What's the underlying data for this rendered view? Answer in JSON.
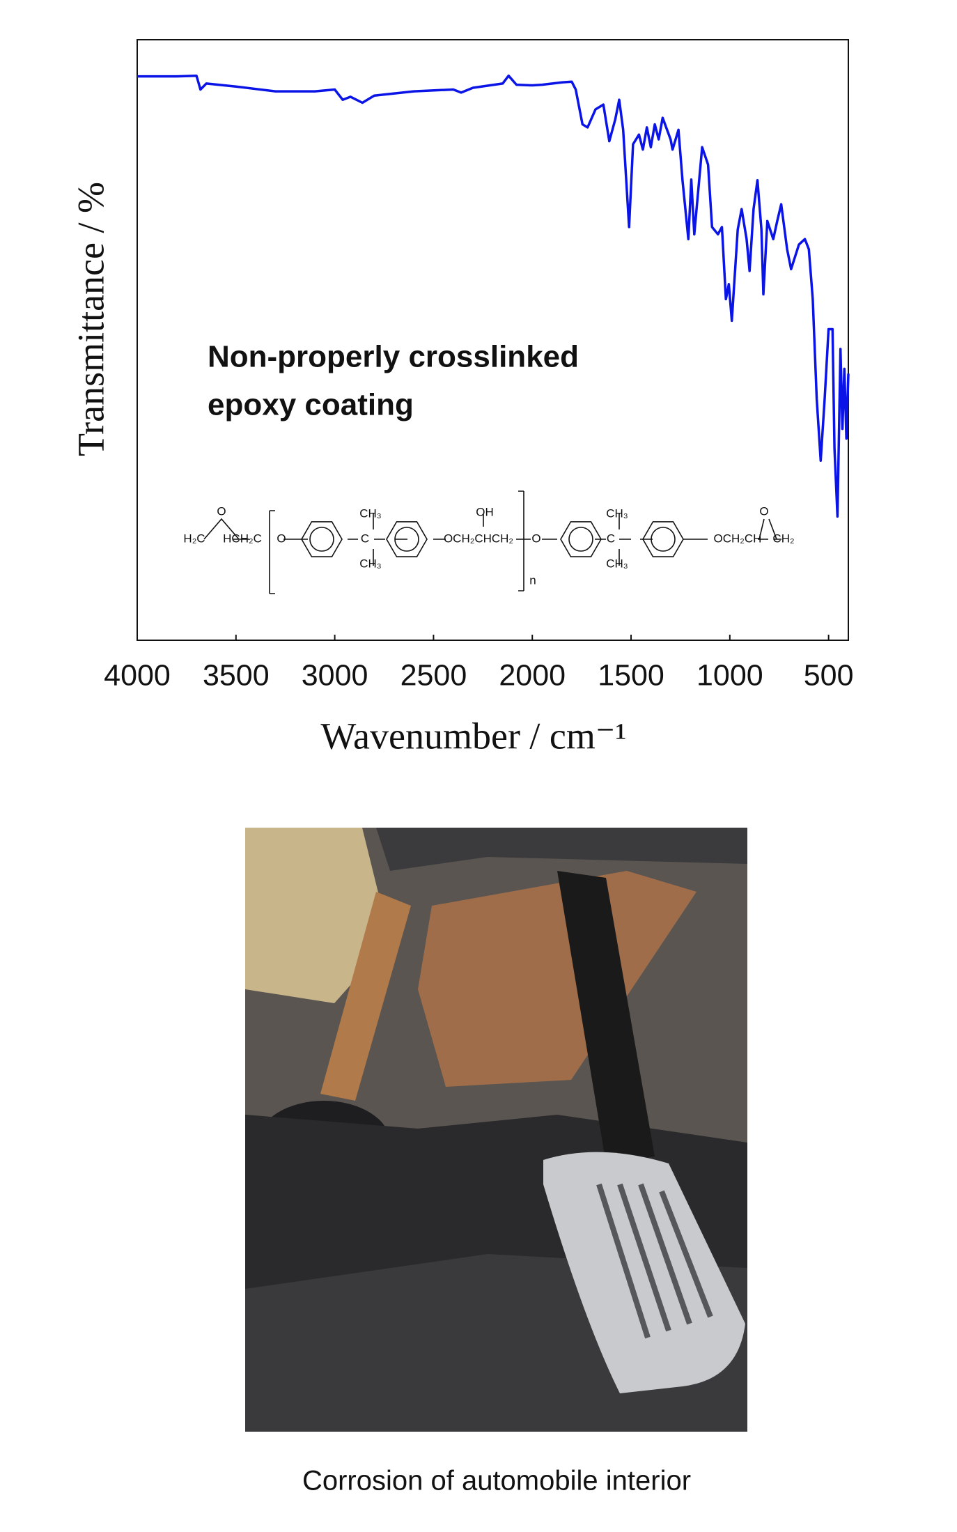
{
  "chart_data": {
    "type": "line",
    "ylabel": "Transmittance / %",
    "xlabel": "Wavenumber / cm⁻¹",
    "annotation": [
      "Non-properly crosslinked",
      "epoxy coating"
    ],
    "xlim": [
      4000,
      400
    ],
    "xticks": [
      4000,
      3500,
      3000,
      2500,
      2000,
      1500,
      1000,
      500
    ],
    "ylim": [
      0,
      100
    ],
    "x": [
      4000,
      3800,
      3700,
      3680,
      3650,
      3500,
      3300,
      3100,
      3000,
      2960,
      2920,
      2860,
      2800,
      2600,
      2400,
      2360,
      2300,
      2150,
      2120,
      2080,
      2000,
      1950,
      1850,
      1800,
      1780,
      1746,
      1720,
      1680,
      1640,
      1610,
      1580,
      1560,
      1540,
      1510,
      1490,
      1460,
      1440,
      1420,
      1400,
      1380,
      1360,
      1340,
      1300,
      1290,
      1260,
      1240,
      1210,
      1195,
      1180,
      1140,
      1110,
      1090,
      1060,
      1040,
      1020,
      1005,
      990,
      960,
      940,
      915,
      900,
      880,
      860,
      840,
      830,
      810,
      780,
      760,
      740,
      710,
      690,
      650,
      620,
      600,
      580,
      560,
      540,
      520,
      500,
      480,
      470,
      455,
      440,
      430,
      420,
      410,
      400
    ],
    "series": [
      {
        "name": "Non-properly crosslinked epoxy coating",
        "color": "#0a14e6",
        "values": [
          93.9,
          93.9,
          94.0,
          91.7,
          92.7,
          92.2,
          91.4,
          91.4,
          91.7,
          90.0,
          90.5,
          89.5,
          90.7,
          91.4,
          91.7,
          91.2,
          92.0,
          92.7,
          94.0,
          92.5,
          92.4,
          92.5,
          92.9,
          93.0,
          91.7,
          85.9,
          85.4,
          88.4,
          89.2,
          83.1,
          86.7,
          90.0,
          85.0,
          68.8,
          82.6,
          84.2,
          81.7,
          85.4,
          82.1,
          85.9,
          83.4,
          87.0,
          83.4,
          81.7,
          85.0,
          76.7,
          66.8,
          76.7,
          67.6,
          82.1,
          79.2,
          68.8,
          67.6,
          68.8,
          56.8,
          59.3,
          53.2,
          68.4,
          71.8,
          66.8,
          61.5,
          71.8,
          76.6,
          68.4,
          57.6,
          69.8,
          66.8,
          69.8,
          72.6,
          65.1,
          61.8,
          65.9,
          66.8,
          65.1,
          56.8,
          40.2,
          29.9,
          40.2,
          51.8,
          51.8,
          31.9,
          20.6,
          48.5,
          35.2,
          45.2,
          33.6,
          44.4
        ]
      }
    ]
  },
  "structure": {
    "labels": [
      "H₂C",
      "O",
      "HCH₂C",
      "O",
      "C",
      "CH₃",
      "CH₃",
      "OCH₂CHCH₂",
      "OH",
      "n",
      "O",
      "C",
      "CH₃",
      "CH₃",
      "OCH₂CH",
      "O",
      "CH₂"
    ]
  },
  "photo": {
    "caption": "Corrosion of automobile interior"
  }
}
